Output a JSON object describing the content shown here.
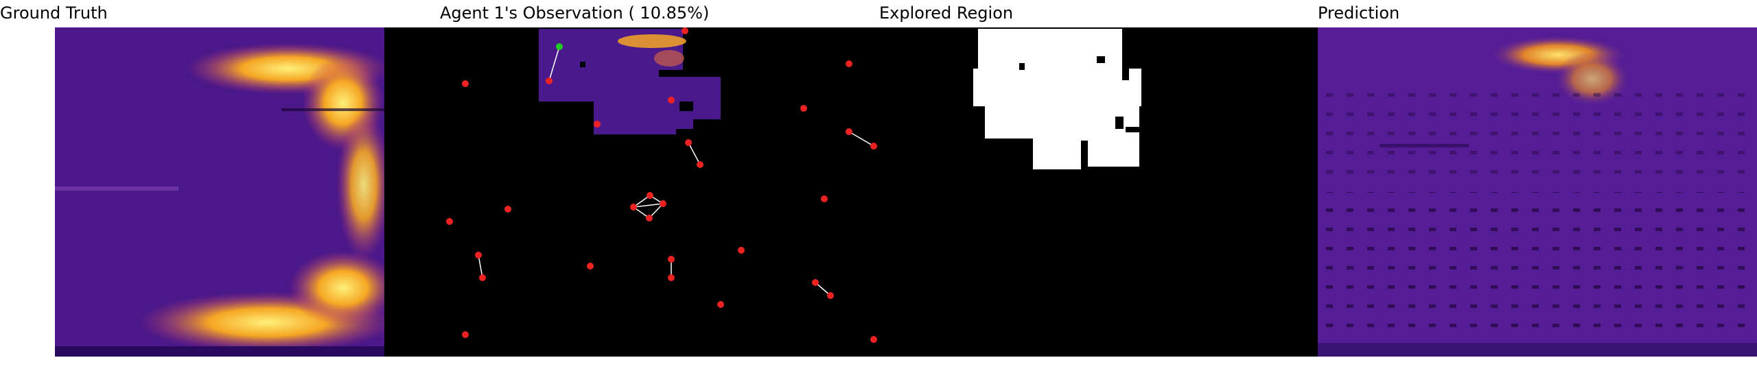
{
  "titles": {
    "ground_truth": "Ground Truth",
    "observation": "Agent 1's Observation ( 10.85%)",
    "explored": "Explored Region",
    "prediction": "Prediction"
  },
  "colors": {
    "background": "#000000",
    "heat_low": "#2a0a5e",
    "heat_mid": "#7a1fa2",
    "heat_high": "#f5a623",
    "heat_peak": "#ffe36b",
    "agent_active": "#22cc22",
    "agent_other": "#ee2222",
    "link_line": "#ffffff",
    "explored_fill": "#ffffff"
  },
  "icons": {
    "agent_marker": "agent-dot-icon",
    "active_agent_marker": "active-agent-dot-icon"
  }
}
